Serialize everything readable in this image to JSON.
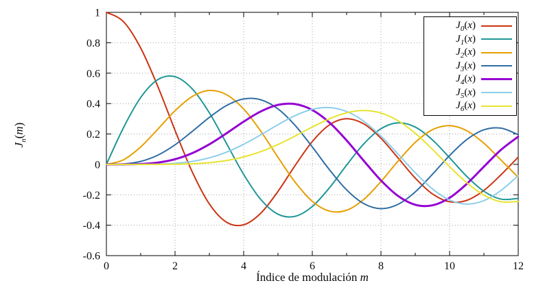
{
  "figure": {
    "background": "#ffffff",
    "border_color": "#000000",
    "grid_color": "#a0a0a0",
    "text_color": "#0a0a0a"
  },
  "chart_data": {
    "type": "line",
    "title": "",
    "xlabel": {
      "text": "Índice de modulación",
      "var": "m"
    },
    "ylabel": {
      "base": "J",
      "sub": "n",
      "open": "(",
      "var": "m",
      "close": ")"
    },
    "xlim": [
      0,
      12
    ],
    "ylim": [
      -0.6,
      1
    ],
    "x_major_ticks": [
      0,
      2,
      4,
      6,
      8,
      10,
      12
    ],
    "x_tick_labels": [
      "0",
      "2",
      "4",
      "6",
      "8",
      "10",
      "12"
    ],
    "x_minor_ticks": [
      1,
      3,
      5,
      7,
      9,
      11
    ],
    "y_major_ticks": [
      1,
      0.8,
      0.6,
      0.4,
      0.2,
      0,
      -0.2,
      -0.4,
      -0.6
    ],
    "y_tick_labels": [
      "1",
      "0.8",
      "0.6",
      "0.4",
      "0.2",
      "0",
      "-0.2",
      "-0.4",
      "-0.6"
    ],
    "grid": "dotted",
    "legend_position": "top-right",
    "legend_open": "(",
    "legend_var": "x",
    "legend_close": ")",
    "x": [
      0,
      0.5,
      1,
      1.5,
      2,
      2.5,
      3,
      3.5,
      4,
      4.5,
      5,
      5.5,
      6,
      6.5,
      7,
      7.5,
      8,
      8.5,
      9,
      9.5,
      10,
      10.5,
      11,
      11.5,
      12
    ],
    "series": [
      {
        "name": "J0(x)",
        "label_base": "J",
        "label_sub": "0",
        "color": "#cc3311",
        "width": 2,
        "values": [
          1,
          0.9385,
          0.7652,
          0.5118,
          0.2239,
          -0.0484,
          -0.2601,
          -0.3801,
          -0.3971,
          -0.3205,
          -0.1776,
          -0.0068,
          0.1506,
          0.2601,
          0.3001,
          0.2663,
          0.1717,
          0.0419,
          -0.0903,
          -0.1939,
          -0.2459,
          -0.2366,
          -0.1712,
          -0.0677,
          0.0477
        ]
      },
      {
        "name": "J1(x)",
        "label_base": "J",
        "label_sub": "1",
        "color": "#1f9696",
        "width": 2,
        "values": [
          0,
          0.2423,
          0.4401,
          0.5579,
          0.5767,
          0.4971,
          0.3391,
          0.1374,
          -0.066,
          -0.2311,
          -0.3276,
          -0.3414,
          -0.2767,
          -0.1538,
          -0.0047,
          0.1352,
          0.2346,
          0.2731,
          0.2453,
          0.1613,
          0.0435,
          -0.0789,
          -0.1768,
          -0.2284,
          -0.2234
        ]
      },
      {
        "name": "J2(x)",
        "label_base": "J",
        "label_sub": "2",
        "color": "#e69f00",
        "width": 2,
        "values": [
          0,
          0.0306,
          0.1149,
          0.2321,
          0.3528,
          0.4461,
          0.4861,
          0.4586,
          0.3641,
          0.2178,
          0.0466,
          -0.1173,
          -0.2429,
          -0.3074,
          -0.3014,
          -0.2303,
          -0.113,
          0.0223,
          0.1448,
          0.2279,
          0.2546,
          0.2216,
          0.139,
          0.0279,
          -0.0849
        ]
      },
      {
        "name": "J3(x)",
        "label_base": "J",
        "label_sub": "3",
        "color": "#2e6da4",
        "width": 2,
        "values": [
          0,
          0.0026,
          0.0196,
          0.061,
          0.1289,
          0.2166,
          0.3091,
          0.3868,
          0.4302,
          0.4247,
          0.3648,
          0.2561,
          0.1148,
          -0.0353,
          -0.1676,
          -0.2581,
          -0.2911,
          -0.2626,
          -0.1809,
          -0.0653,
          0.0584,
          0.1633,
          0.2273,
          0.2381,
          0.1951
        ]
      },
      {
        "name": "J4(x)",
        "label_base": "J",
        "label_sub": "4",
        "color": "#9400d3",
        "width": 3,
        "values": [
          0,
          0.0002,
          0.0025,
          0.0118,
          0.034,
          0.0738,
          0.132,
          0.2044,
          0.2811,
          0.3484,
          0.3912,
          0.3967,
          0.3576,
          0.2748,
          0.1578,
          0.0238,
          -0.1054,
          -0.2077,
          -0.2655,
          -0.2691,
          -0.2196,
          -0.1283,
          -0.015,
          0.0963,
          0.1825
        ]
      },
      {
        "name": "J5(x)",
        "label_base": "J",
        "label_sub": "5",
        "color": "#8ccdea",
        "width": 2,
        "values": [
          0,
          0.0,
          0.0002,
          0.0018,
          0.007,
          0.0195,
          0.043,
          0.0804,
          0.1321,
          0.1947,
          0.2611,
          0.3209,
          0.3621,
          0.3736,
          0.3479,
          0.2833,
          0.1858,
          0.0671,
          -0.055,
          -0.1613,
          -0.2341,
          -0.2611,
          -0.2383,
          -0.1711,
          -0.0735
        ]
      },
      {
        "name": "J6(x)",
        "label_base": "J",
        "label_sub": "6",
        "color": "#e7e32e",
        "width": 2,
        "values": [
          0,
          0.0,
          0.0,
          0.0002,
          0.0012,
          0.0042,
          0.0114,
          0.0254,
          0.0491,
          0.0843,
          0.131,
          0.1868,
          0.2458,
          0.2999,
          0.3392,
          0.3541,
          0.3376,
          0.2867,
          0.2043,
          0.0993,
          -0.0145,
          -0.1203,
          -0.2016,
          -0.2459,
          -0.2437
        ]
      }
    ]
  }
}
